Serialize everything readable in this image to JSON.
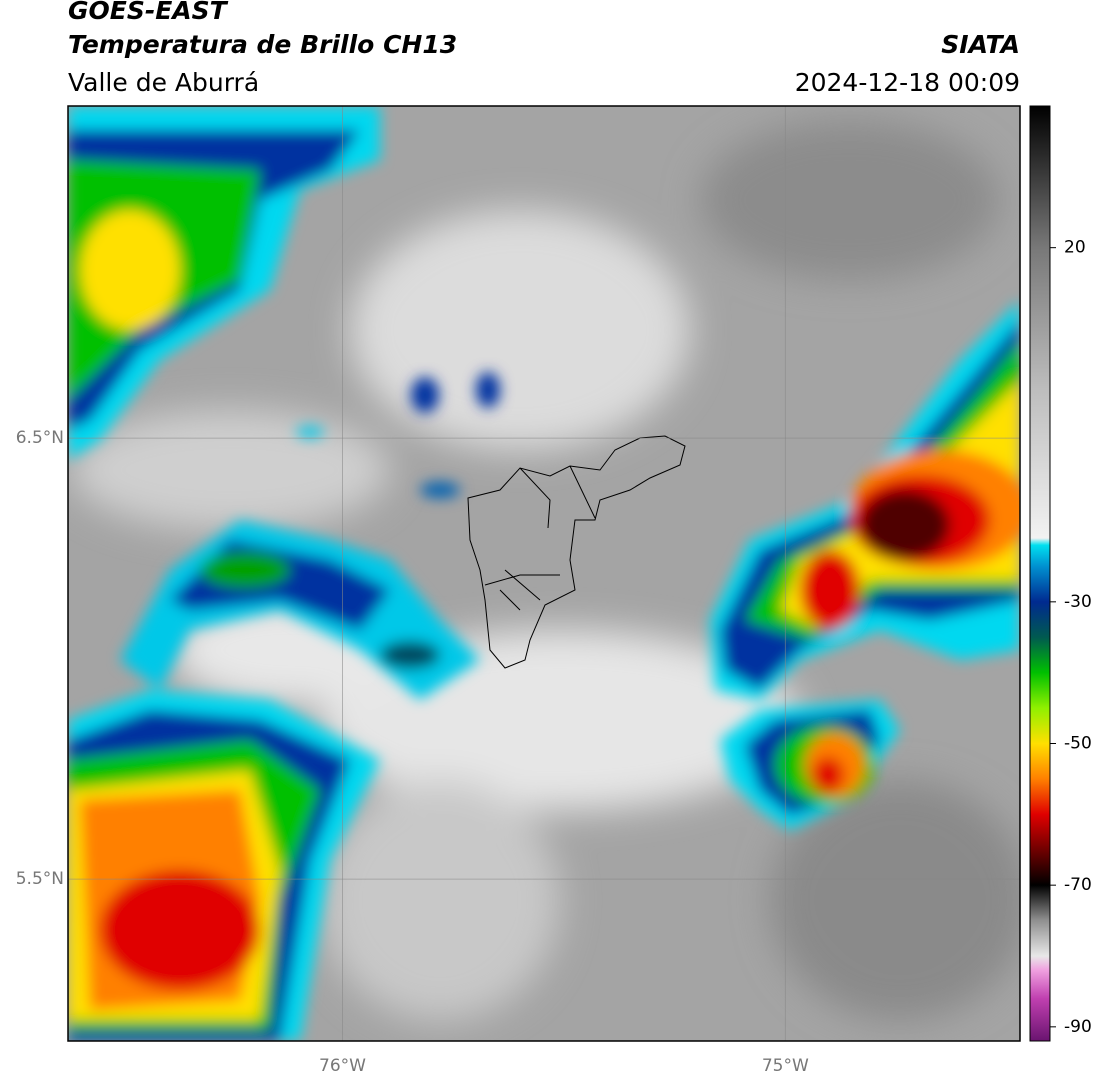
{
  "chart_data": {
    "type": "map",
    "title": "GOES-EAST",
    "subtitle": "Temperatura de Brillo CH13",
    "region": "Valle de Aburrá",
    "source": "SIATA",
    "datetime": "2024-12-18 00:09",
    "xlim": [
      -76.62,
      -74.47
    ],
    "ylim": [
      5.133,
      7.253
    ],
    "xticks": [
      {
        "value": -76,
        "label": "76°W"
      },
      {
        "value": -75,
        "label": "75°W"
      }
    ],
    "yticks": [
      {
        "value": 6.5,
        "label": "6.5°N"
      },
      {
        "value": 5.5,
        "label": "5.5°N"
      }
    ],
    "colorbar_lim": [
      -92,
      40
    ],
    "colorbar_ticks": [
      20,
      -30,
      -50,
      -70,
      -90
    ],
    "colormap": [
      {
        "value": -92,
        "color": "#6a1470"
      },
      {
        "value": -86,
        "color": "#c040b0"
      },
      {
        "value": -82,
        "color": "#f0a0e0"
      },
      {
        "value": -80,
        "color": "#e8e8e8"
      },
      {
        "value": -75,
        "color": "#909090"
      },
      {
        "value": -70,
        "color": "#000000"
      },
      {
        "value": -65,
        "color": "#700000"
      },
      {
        "value": -60,
        "color": "#e00000"
      },
      {
        "value": -55,
        "color": "#ff8000"
      },
      {
        "value": -50,
        "color": "#ffe000"
      },
      {
        "value": -45,
        "color": "#90f000"
      },
      {
        "value": -40,
        "color": "#00c000"
      },
      {
        "value": -35,
        "color": "#005a50"
      },
      {
        "value": -30,
        "color": "#002a90"
      },
      {
        "value": -25,
        "color": "#0090d0"
      },
      {
        "value": -22,
        "color": "#00e0f0"
      },
      {
        "value": -21,
        "color": "#f2f2f2"
      },
      {
        "value": 0,
        "color": "#bdbdbd"
      },
      {
        "value": 20,
        "color": "#787878"
      },
      {
        "value": 40,
        "color": "#000000"
      }
    ]
  }
}
